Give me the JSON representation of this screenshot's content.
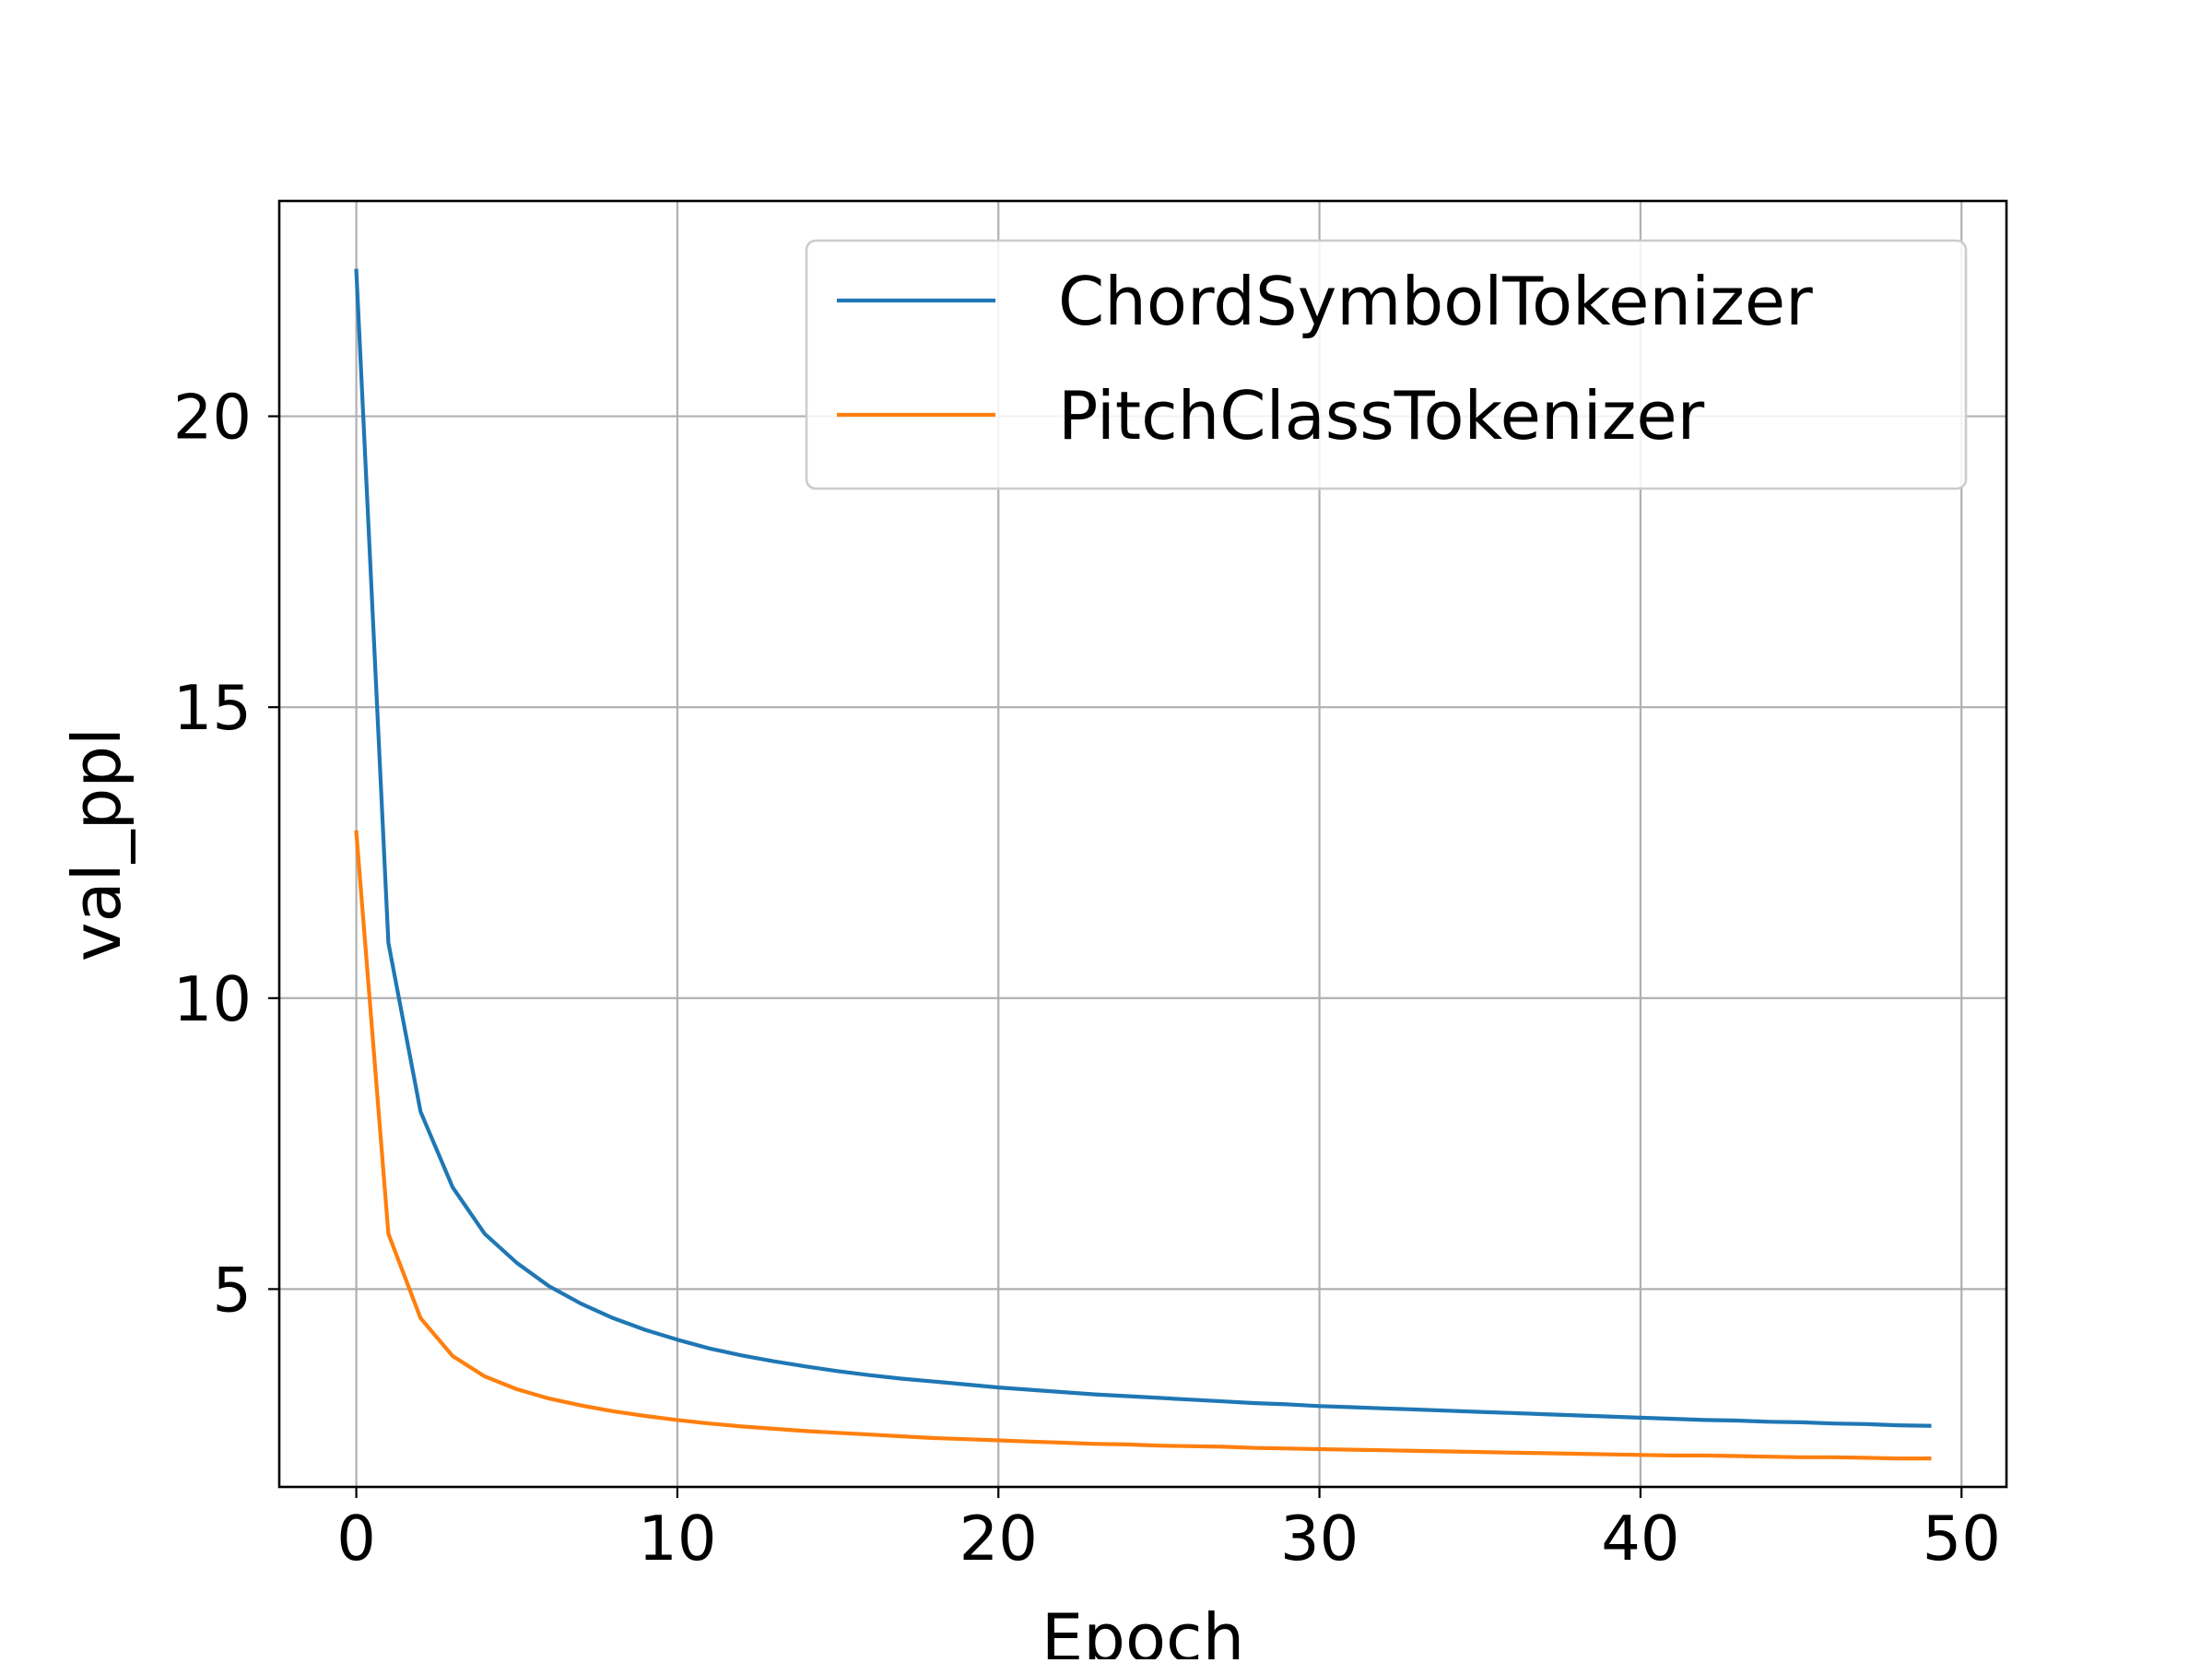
{
  "chart_data": {
    "type": "line",
    "title": "",
    "xlabel": "Epoch",
    "ylabel": "val_ppl",
    "xlim": [
      -2.4,
      51.4
    ],
    "ylim": [
      1.6,
      23.7
    ],
    "xticks": [
      0,
      10,
      20,
      30,
      40,
      50
    ],
    "yticks": [
      5,
      10,
      15,
      20
    ],
    "grid": true,
    "legend_position": "top-right",
    "x": [
      0,
      1,
      2,
      3,
      4,
      5,
      6,
      7,
      8,
      9,
      10,
      11,
      12,
      13,
      14,
      15,
      16,
      17,
      18,
      19,
      20,
      21,
      22,
      23,
      24,
      25,
      26,
      27,
      28,
      29,
      30,
      31,
      32,
      33,
      34,
      35,
      36,
      37,
      38,
      39,
      40,
      41,
      42,
      43,
      44,
      45,
      46,
      47,
      48,
      49
    ],
    "series": [
      {
        "name": "ChordSymbolTokenizer",
        "color": "#1f77b4",
        "values": [
          22.5,
          10.95,
          8.05,
          6.75,
          5.95,
          5.45,
          5.05,
          4.75,
          4.5,
          4.3,
          4.13,
          3.98,
          3.86,
          3.76,
          3.67,
          3.59,
          3.52,
          3.46,
          3.41,
          3.36,
          3.31,
          3.27,
          3.23,
          3.19,
          3.16,
          3.13,
          3.1,
          3.07,
          3.04,
          3.02,
          2.99,
          2.97,
          2.95,
          2.93,
          2.91,
          2.89,
          2.87,
          2.85,
          2.83,
          2.81,
          2.79,
          2.77,
          2.75,
          2.74,
          2.72,
          2.71,
          2.69,
          2.68,
          2.66,
          2.65
        ]
      },
      {
        "name": "PitchClassTokenizer",
        "color": "#ff7f0e",
        "values": [
          12.85,
          5.95,
          4.5,
          3.85,
          3.5,
          3.28,
          3.12,
          3.0,
          2.9,
          2.82,
          2.75,
          2.69,
          2.64,
          2.6,
          2.56,
          2.53,
          2.5,
          2.47,
          2.44,
          2.42,
          2.4,
          2.38,
          2.36,
          2.34,
          2.33,
          2.31,
          2.3,
          2.29,
          2.27,
          2.26,
          2.25,
          2.24,
          2.23,
          2.22,
          2.21,
          2.2,
          2.19,
          2.18,
          2.17,
          2.16,
          2.15,
          2.14,
          2.14,
          2.13,
          2.12,
          2.11,
          2.11,
          2.1,
          2.09,
          2.09
        ]
      }
    ]
  }
}
